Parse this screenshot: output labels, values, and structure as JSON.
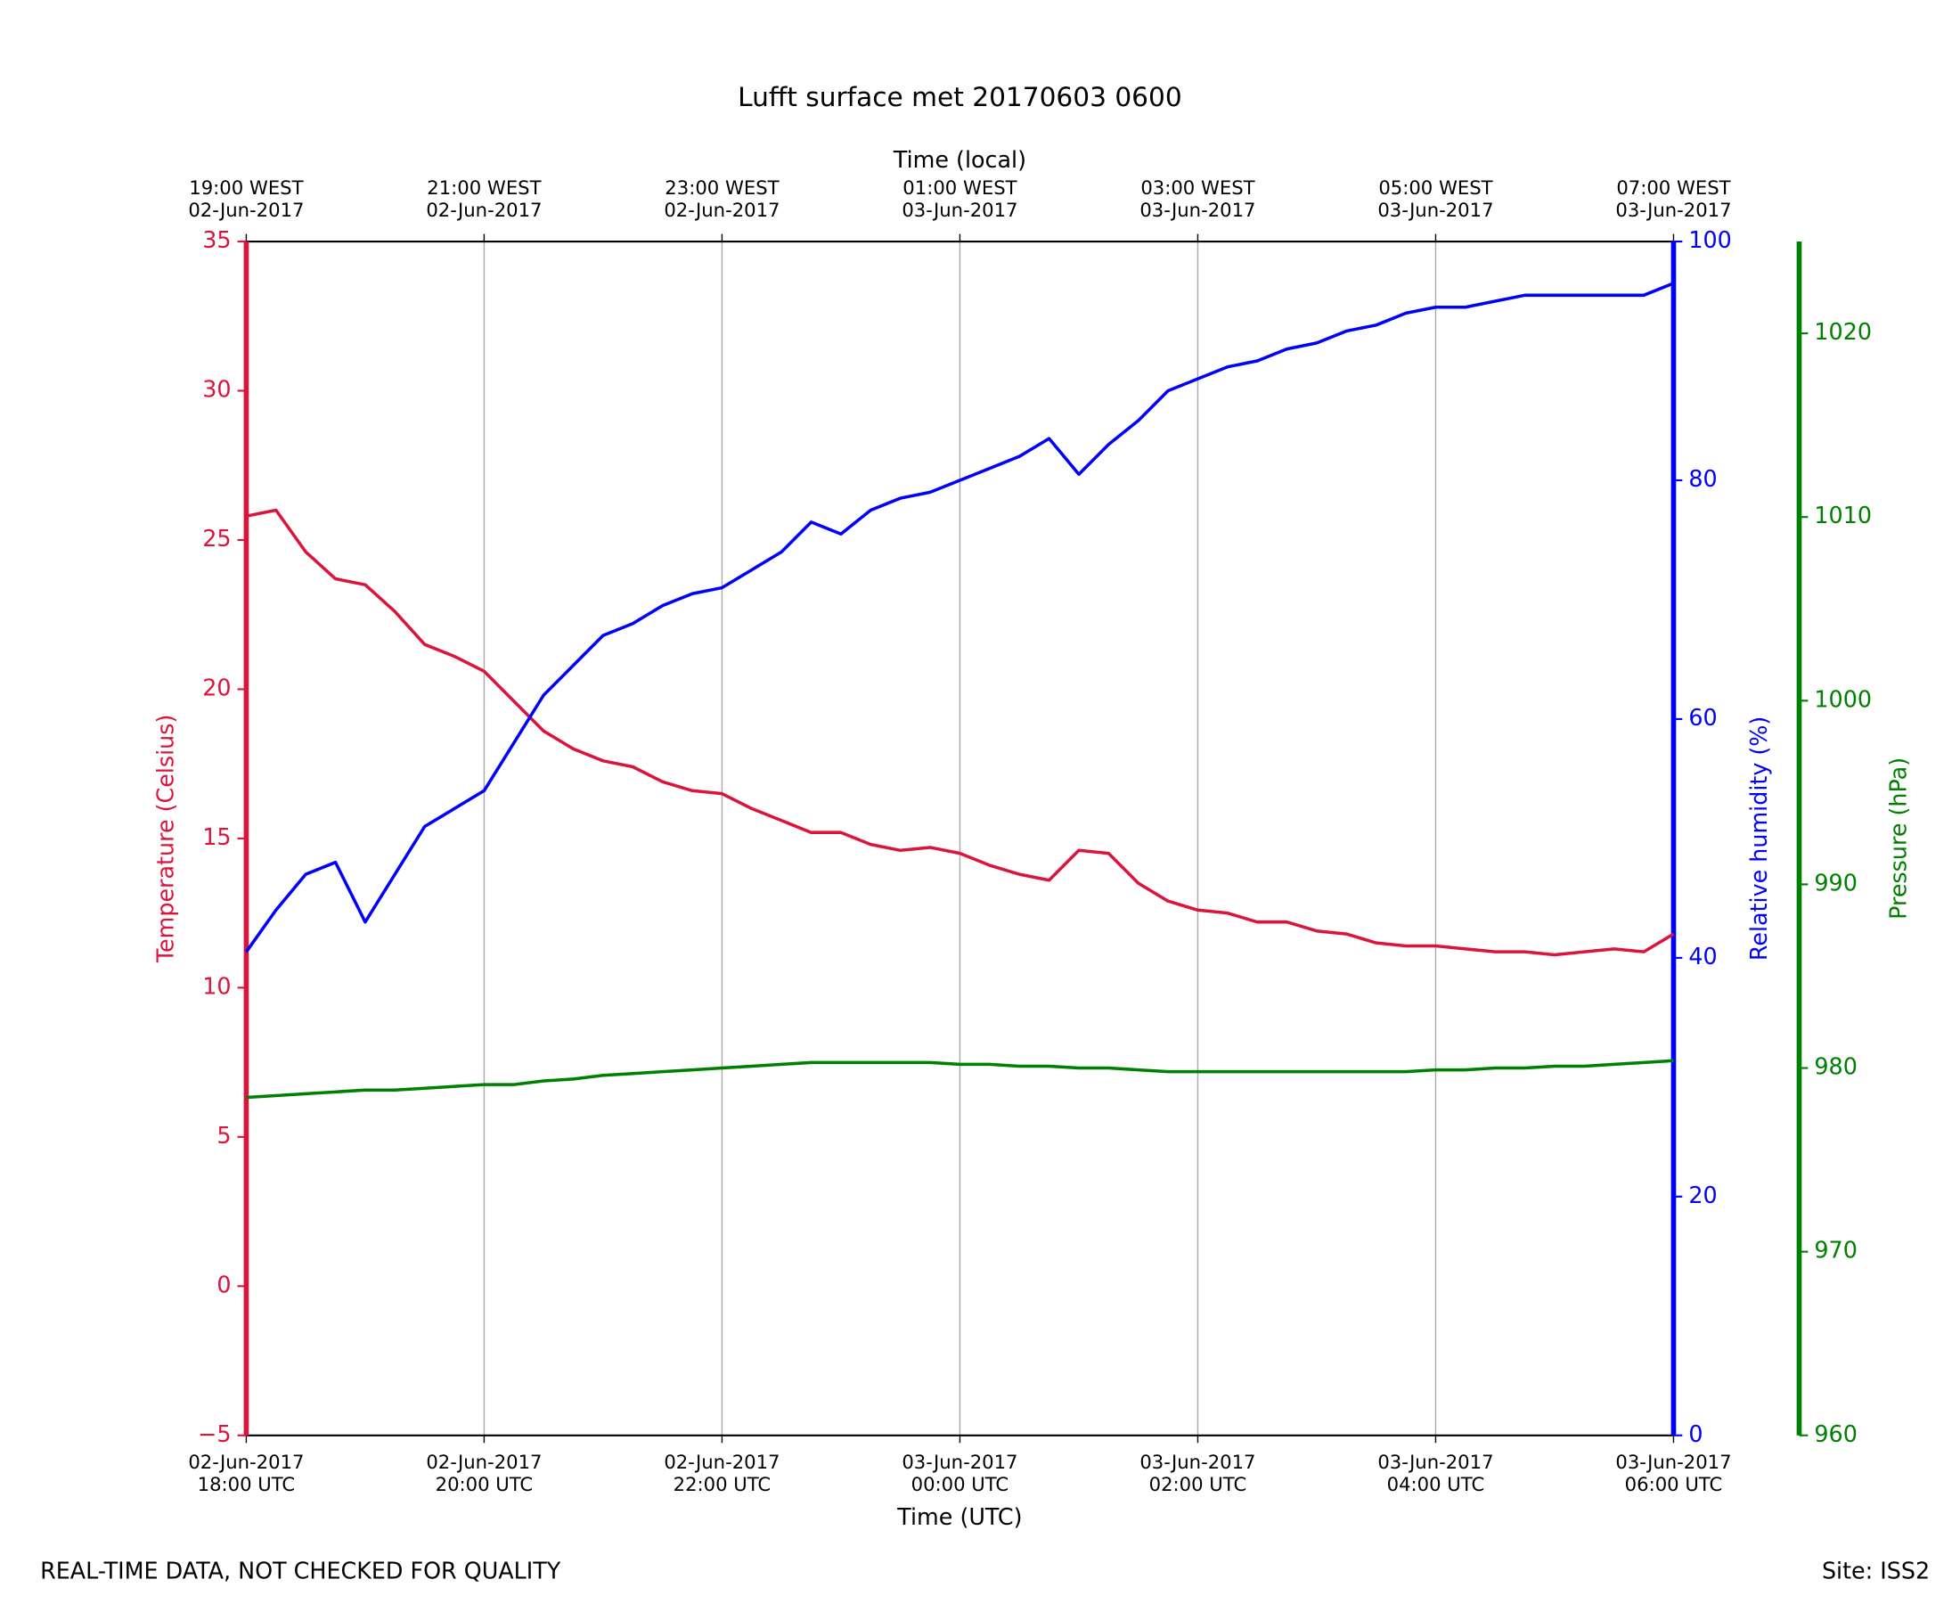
{
  "chart_data": {
    "type": "line",
    "title": "Lufft surface met 20170603 0600",
    "xlabel": "Time (UTC)",
    "x2label": "Time (local)",
    "ylabel": "Temperature (Celsius)",
    "y2label": "Relative humidity (%)",
    "y3label": "Pressure (hPa)",
    "footer_left": "REAL-TIME DATA, NOT CHECKED FOR QUALITY",
    "footer_right": "Site: ISS2",
    "grid": true,
    "x": [
      "2017-06-02 18:00",
      "2017-06-02 18:15",
      "2017-06-02 18:30",
      "2017-06-02 18:45",
      "2017-06-02 19:00",
      "2017-06-02 19:15",
      "2017-06-02 19:30",
      "2017-06-02 19:45",
      "2017-06-02 20:00",
      "2017-06-02 20:15",
      "2017-06-02 20:30",
      "2017-06-02 20:45",
      "2017-06-02 21:00",
      "2017-06-02 21:15",
      "2017-06-02 21:30",
      "2017-06-02 21:45",
      "2017-06-02 22:00",
      "2017-06-02 22:15",
      "2017-06-02 22:30",
      "2017-06-02 22:45",
      "2017-06-02 23:00",
      "2017-06-02 23:15",
      "2017-06-02 23:30",
      "2017-06-02 23:45",
      "2017-06-03 00:00",
      "2017-06-03 00:15",
      "2017-06-03 00:30",
      "2017-06-03 00:45",
      "2017-06-03 01:00",
      "2017-06-03 01:15",
      "2017-06-03 01:30",
      "2017-06-03 01:45",
      "2017-06-03 02:00",
      "2017-06-03 02:15",
      "2017-06-03 02:30",
      "2017-06-03 02:45",
      "2017-06-03 03:00",
      "2017-06-03 03:15",
      "2017-06-03 03:30",
      "2017-06-03 03:45",
      "2017-06-03 04:00",
      "2017-06-03 04:15",
      "2017-06-03 04:30",
      "2017-06-03 04:45",
      "2017-06-03 05:00",
      "2017-06-03 05:15",
      "2017-06-03 05:30",
      "2017-06-03 05:45",
      "2017-06-03 06:00"
    ],
    "xlim": [
      "2017-06-02 18:00",
      "2017-06-03 06:00"
    ],
    "xticks": [
      {
        "value": "2017-06-02 18:00",
        "label": [
          "02-Jun-2017",
          "18:00 UTC"
        ]
      },
      {
        "value": "2017-06-02 20:00",
        "label": [
          "02-Jun-2017",
          "20:00 UTC"
        ]
      },
      {
        "value": "2017-06-02 22:00",
        "label": [
          "02-Jun-2017",
          "22:00 UTC"
        ]
      },
      {
        "value": "2017-06-03 00:00",
        "label": [
          "03-Jun-2017",
          "00:00 UTC"
        ]
      },
      {
        "value": "2017-06-03 02:00",
        "label": [
          "03-Jun-2017",
          "02:00 UTC"
        ]
      },
      {
        "value": "2017-06-03 04:00",
        "label": [
          "03-Jun-2017",
          "04:00 UTC"
        ]
      },
      {
        "value": "2017-06-03 06:00",
        "label": [
          "03-Jun-2017",
          "06:00 UTC"
        ]
      }
    ],
    "x2ticks": [
      {
        "value": "2017-06-02 18:00",
        "label": [
          "19:00 WEST",
          "02-Jun-2017"
        ]
      },
      {
        "value": "2017-06-02 20:00",
        "label": [
          "21:00 WEST",
          "02-Jun-2017"
        ]
      },
      {
        "value": "2017-06-02 22:00",
        "label": [
          "23:00 WEST",
          "02-Jun-2017"
        ]
      },
      {
        "value": "2017-06-03 00:00",
        "label": [
          "01:00 WEST",
          "03-Jun-2017"
        ]
      },
      {
        "value": "2017-06-03 02:00",
        "label": [
          "03:00 WEST",
          "03-Jun-2017"
        ]
      },
      {
        "value": "2017-06-03 04:00",
        "label": [
          "05:00 WEST",
          "03-Jun-2017"
        ]
      },
      {
        "value": "2017-06-03 06:00",
        "label": [
          "07:00 WEST",
          "03-Jun-2017"
        ]
      }
    ],
    "ylim": [
      -5,
      35
    ],
    "yticks": [
      {
        "value": -5,
        "label": "−5"
      },
      0,
      5,
      10,
      15,
      20,
      25,
      30,
      35
    ],
    "y2lim": [
      0,
      100
    ],
    "y2ticks": [
      0,
      20,
      40,
      60,
      80,
      100
    ],
    "y3lim": [
      960,
      1025
    ],
    "y3ticks": [
      960,
      970,
      980,
      990,
      1000,
      1010,
      1020
    ],
    "series": [
      {
        "name": "Temperature",
        "color": "#dc143c",
        "axis": "y",
        "values": [
          25.8,
          26.0,
          24.6,
          23.7,
          23.5,
          22.6,
          21.5,
          21.1,
          20.6,
          19.6,
          18.6,
          18.0,
          17.6,
          17.4,
          16.9,
          16.6,
          16.5,
          16.0,
          15.6,
          15.2,
          15.2,
          14.8,
          14.6,
          14.7,
          14.5,
          14.1,
          13.8,
          13.6,
          14.6,
          14.5,
          13.5,
          12.9,
          12.6,
          12.5,
          12.2,
          12.2,
          11.9,
          11.8,
          11.5,
          11.4,
          11.4,
          11.3,
          11.2,
          11.2,
          11.1,
          11.2,
          11.3,
          11.2,
          11.8
        ]
      },
      {
        "name": "Relative humidity",
        "color": "#0000ff",
        "axis": "y2",
        "values": [
          40.5,
          44,
          47,
          48,
          43,
          47,
          51,
          52.5,
          54,
          58,
          62,
          64.5,
          67,
          68,
          69.5,
          70.5,
          71,
          72.5,
          74,
          76.5,
          75.5,
          77.5,
          78.5,
          79,
          80,
          81,
          82,
          83.5,
          80.5,
          83,
          85,
          87.5,
          88.5,
          89.5,
          90,
          91,
          91.5,
          92.5,
          93,
          94,
          94.5,
          94.5,
          95,
          95.5,
          95.5,
          95.5,
          95.5,
          95.5,
          96.5
        ]
      },
      {
        "name": "Pressure",
        "color": "#008000",
        "axis": "y3",
        "values": [
          978.4,
          978.5,
          978.6,
          978.7,
          978.8,
          978.8,
          978.9,
          979.0,
          979.1,
          979.1,
          979.3,
          979.4,
          979.6,
          979.7,
          979.8,
          979.9,
          980.0,
          980.1,
          980.2,
          980.3,
          980.3,
          980.3,
          980.3,
          980.3,
          980.2,
          980.2,
          980.1,
          980.1,
          980.0,
          980.0,
          979.9,
          979.8,
          979.8,
          979.8,
          979.8,
          979.8,
          979.8,
          979.8,
          979.8,
          979.8,
          979.9,
          979.9,
          980.0,
          980.0,
          980.1,
          980.1,
          980.2,
          980.3,
          980.4
        ]
      }
    ]
  }
}
